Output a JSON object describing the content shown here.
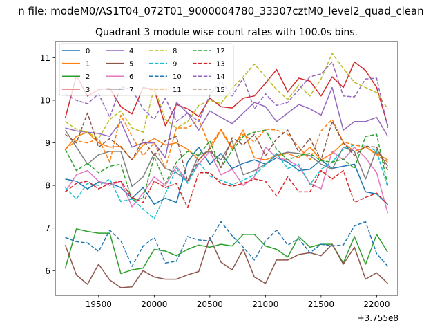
{
  "chart_data": {
    "type": "line",
    "suptitle": "n file: modeM0/AS1T04_072T01_9000004780_33307cztM0_level2_quad_clean",
    "title": "Quadrant 3 module wise count rates with 100.0s bins.",
    "xlabel": "",
    "ylabel": "",
    "x_offset_label": "+3.755e8",
    "xlim": [
      19110,
      22190
    ],
    "ylim": [
      5.42,
      11.38
    ],
    "xticks": [
      19500,
      20000,
      20500,
      21000,
      21500,
      22000
    ],
    "yticks": [
      6,
      7,
      8,
      9,
      10,
      11
    ],
    "legend_position": "top-left",
    "x": [
      19200,
      19300,
      19400,
      19500,
      19600,
      19700,
      19800,
      19900,
      20000,
      20100,
      20200,
      20300,
      20400,
      20500,
      20600,
      20700,
      20800,
      20900,
      21000,
      21100,
      21200,
      21300,
      21400,
      21500,
      21600,
      21700,
      21800,
      21900,
      22000,
      22100
    ],
    "series": [
      {
        "name": "0",
        "color": "#1f77b4",
        "dash": "solid",
        "values": [
          8.15,
          8.1,
          7.92,
          8.08,
          8.05,
          7.95,
          7.7,
          7.95,
          7.56,
          7.7,
          7.6,
          8.55,
          8.9,
          8.5,
          8.75,
          8.4,
          8.52,
          8.6,
          8.5,
          8.65,
          8.55,
          8.35,
          8.38,
          8.6,
          8.4,
          8.45,
          8.5,
          7.85,
          7.8,
          7.55
        ]
      },
      {
        "name": "1",
        "color": "#ff7f0e",
        "dash": "solid",
        "values": [
          8.85,
          9.15,
          9.25,
          9.0,
          8.9,
          8.92,
          8.6,
          8.95,
          9.1,
          8.95,
          9.0,
          8.85,
          8.6,
          8.85,
          9.3,
          8.85,
          9.3,
          8.65,
          8.6,
          8.7,
          8.75,
          8.65,
          8.9,
          8.6,
          8.75,
          9.0,
          8.8,
          8.9,
          8.75,
          8.6
        ]
      },
      {
        "name": "2",
        "color": "#2ca02c",
        "dash": "solid",
        "values": [
          6.05,
          6.98,
          6.92,
          6.88,
          6.88,
          5.93,
          6.02,
          6.06,
          6.5,
          6.46,
          6.35,
          6.5,
          6.6,
          6.55,
          6.62,
          6.58,
          6.85,
          6.85,
          6.58,
          6.5,
          6.32,
          6.8,
          6.55,
          6.62,
          6.62,
          6.18,
          6.8,
          6.15,
          6.85,
          6.43
        ]
      },
      {
        "name": "3",
        "color": "#d62728",
        "dash": "solid",
        "values": [
          9.58,
          10.58,
          10.1,
          10.25,
          10.28,
          9.85,
          9.68,
          10.3,
          10.25,
          9.4,
          9.9,
          9.8,
          9.62,
          10.05,
          9.85,
          9.82,
          10.05,
          10.1,
          10.4,
          10.72,
          10.2,
          10.52,
          10.45,
          10.1,
          10.55,
          10.3,
          10.9,
          10.7,
          10.3,
          9.4
        ]
      },
      {
        "name": "4",
        "color": "#9467bd",
        "dash": "solid",
        "values": [
          9.35,
          9.28,
          9.25,
          9.22,
          9.15,
          9.5,
          8.9,
          9.0,
          9.0,
          8.65,
          9.95,
          9.7,
          9.3,
          9.75,
          9.6,
          9.45,
          9.7,
          9.95,
          9.85,
          9.5,
          9.7,
          9.9,
          9.8,
          9.65,
          10.3,
          9.3,
          9.5,
          9.5,
          9.6,
          9.15
        ]
      },
      {
        "name": "5",
        "color": "#8c564b",
        "dash": "solid",
        "values": [
          6.6,
          5.9,
          5.68,
          6.15,
          5.78,
          5.6,
          5.62,
          6.0,
          5.85,
          5.8,
          5.8,
          5.9,
          5.98,
          6.78,
          6.2,
          6.02,
          6.5,
          5.85,
          5.7,
          6.25,
          6.25,
          6.38,
          6.42,
          6.35,
          6.62,
          6.15,
          6.55,
          5.8,
          5.95,
          5.7
        ]
      },
      {
        "name": "6",
        "color": "#e377c2",
        "dash": "solid",
        "values": [
          7.85,
          8.25,
          8.35,
          8.1,
          8.0,
          8.1,
          7.5,
          7.82,
          8.2,
          8.0,
          8.45,
          8.1,
          8.5,
          8.8,
          8.25,
          8.38,
          8.0,
          8.2,
          8.9,
          8.65,
          8.6,
          8.45,
          8.05,
          7.92,
          8.8,
          8.6,
          8.9,
          8.65,
          8.3,
          7.35
        ]
      },
      {
        "name": "7",
        "color": "#7f7f7f",
        "dash": "solid",
        "values": [
          9.3,
          8.9,
          8.5,
          8.72,
          8.8,
          8.8,
          7.98,
          8.2,
          8.75,
          8.4,
          8.3,
          8.1,
          8.72,
          8.8,
          8.6,
          9.05,
          8.25,
          8.35,
          8.5,
          8.72,
          8.78,
          8.75,
          8.7,
          8.5,
          8.38,
          8.9,
          8.8,
          8.15,
          8.85,
          8.45
        ]
      },
      {
        "name": "8",
        "color": "#bcbd22",
        "dash": "dashed",
        "values": [
          9.5,
          9.32,
          9.25,
          9.1,
          9.55,
          9.75,
          9.35,
          9.25,
          10.3,
          9.55,
          9.35,
          9.5,
          9.88,
          10.0,
          9.92,
          10.28,
          10.55,
          10.85,
          10.55,
          10.25,
          10.02,
          10.35,
          10.1,
          10.5,
          11.1,
          10.75,
          10.42,
          10.3,
          10.18,
          9.8
        ]
      },
      {
        "name": "9",
        "color": "#17becf",
        "dash": "dashed",
        "values": [
          7.95,
          7.68,
          8.05,
          8.0,
          8.15,
          7.62,
          7.68,
          7.45,
          7.22,
          7.8,
          8.4,
          8.05,
          8.55,
          8.22,
          8.12,
          8.02,
          8.12,
          8.25,
          8.48,
          8.75,
          8.4,
          8.5,
          8.02,
          8.38,
          8.55,
          8.85,
          8.95,
          8.95,
          8.8,
          7.95
        ]
      },
      {
        "name": "10",
        "color": "#1f77b4",
        "dash": "dashed",
        "values": [
          6.78,
          6.68,
          6.65,
          6.45,
          6.95,
          6.7,
          6.1,
          6.58,
          6.78,
          6.18,
          6.22,
          6.8,
          6.72,
          6.7,
          7.15,
          6.82,
          6.55,
          6.25,
          6.7,
          6.95,
          6.6,
          6.75,
          6.42,
          6.62,
          6.58,
          6.6,
          7.05,
          7.15,
          6.4,
          6.1
        ]
      },
      {
        "name": "11",
        "color": "#ff7f0e",
        "dash": "dashed",
        "values": [
          8.85,
          9.05,
          9.0,
          9.1,
          8.55,
          9.65,
          9.15,
          8.7,
          9.0,
          8.4,
          9.35,
          9.35,
          9.55,
          8.92,
          9.32,
          8.9,
          9.2,
          9.02,
          9.32,
          9.3,
          9.2,
          8.9,
          8.6,
          9.28,
          9.55,
          9.02,
          8.95,
          8.9,
          8.72,
          8.55
        ]
      },
      {
        "name": "12",
        "color": "#2ca02c",
        "dash": "dashed",
        "values": [
          8.85,
          8.35,
          8.52,
          8.3,
          8.45,
          8.5,
          7.65,
          7.7,
          8.68,
          8.05,
          8.55,
          8.8,
          8.7,
          9.05,
          8.42,
          8.82,
          9.15,
          9.25,
          9.3,
          8.85,
          8.6,
          8.7,
          8.75,
          8.58,
          8.55,
          8.62,
          8.4,
          9.15,
          9.2,
          8.0
        ]
      },
      {
        "name": "13",
        "color": "#d62728",
        "dash": "dashed",
        "values": [
          7.85,
          8.05,
          8.1,
          7.92,
          8.05,
          8.1,
          7.72,
          7.6,
          8.1,
          7.95,
          8.05,
          7.48,
          8.3,
          8.3,
          8.05,
          7.98,
          8.05,
          8.15,
          8.1,
          7.75,
          8.2,
          7.85,
          7.85,
          8.35,
          8.15,
          8.35,
          7.6,
          7.72,
          7.82,
          7.55
        ]
      },
      {
        "name": "14",
        "color": "#9467bd",
        "dash": "dashed",
        "values": [
          10.15,
          10.0,
          9.92,
          10.15,
          9.6,
          10.32,
          10.25,
          9.8,
          9.55,
          10.05,
          9.5,
          9.7,
          9.5,
          10.12,
          10.45,
          10.1,
          10.52,
          9.8,
          10.15,
          9.88,
          9.95,
          10.25,
          10.55,
          10.62,
          10.9,
          10.1,
          10.08,
          10.5,
          10.52,
          9.35
        ]
      },
      {
        "name": "15",
        "color": "#8c564b",
        "dash": "dashed",
        "values": [
          9.2,
          9.0,
          9.7,
          8.9,
          9.1,
          8.9,
          8.6,
          9.08,
          8.7,
          9.05,
          9.15,
          8.1,
          8.6,
          8.88,
          8.42,
          9.12,
          8.95,
          9.2,
          8.7,
          9.1,
          9.3,
          8.78,
          9.1,
          8.6,
          9.5,
          9.0,
          8.7,
          8.92,
          8.9,
          8.35
        ]
      }
    ]
  }
}
